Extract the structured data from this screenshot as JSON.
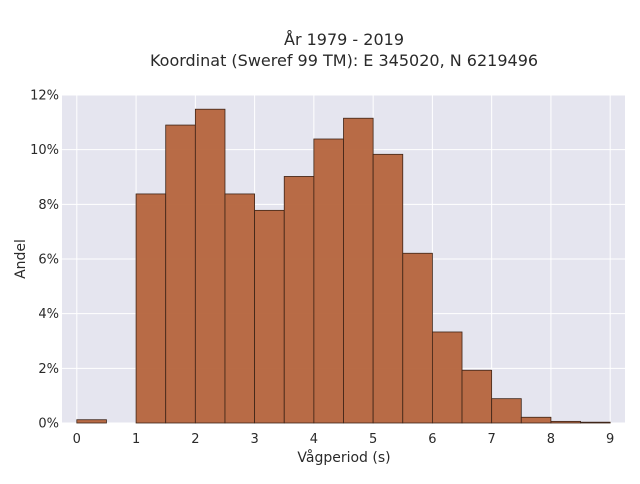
{
  "chart_data": {
    "type": "bar",
    "title_lines": [
      "År 1979 - 2019",
      "Koordinat (Sweref 99 TM): E 345020, N 6219496"
    ],
    "xlabel": "Vågperiod (s)",
    "ylabel": "Andel",
    "bin_width": 0.5,
    "bins": [
      {
        "x0": 0.0,
        "value": 0.0012
      },
      {
        "x0": 0.5,
        "value": 0.0
      },
      {
        "x0": 1.0,
        "value": 0.0838
      },
      {
        "x0": 1.5,
        "value": 0.109
      },
      {
        "x0": 2.0,
        "value": 0.1148
      },
      {
        "x0": 2.5,
        "value": 0.0838
      },
      {
        "x0": 3.0,
        "value": 0.0778
      },
      {
        "x0": 3.5,
        "value": 0.0902
      },
      {
        "x0": 4.0,
        "value": 0.1039
      },
      {
        "x0": 4.5,
        "value": 0.1115
      },
      {
        "x0": 5.0,
        "value": 0.0983
      },
      {
        "x0": 5.5,
        "value": 0.0621
      },
      {
        "x0": 6.0,
        "value": 0.0333
      },
      {
        "x0": 6.5,
        "value": 0.0193
      },
      {
        "x0": 7.0,
        "value": 0.0089
      },
      {
        "x0": 7.5,
        "value": 0.0021
      },
      {
        "x0": 8.0,
        "value": 0.0006
      },
      {
        "x0": 8.5,
        "value": 0.0003
      }
    ],
    "xlim": [
      -0.25,
      9.25
    ],
    "ylim": [
      0,
      0.12
    ],
    "x_ticks": [
      0,
      1,
      2,
      3,
      4,
      5,
      6,
      7,
      8,
      9
    ],
    "x_tick_labels": [
      "0",
      "1",
      "2",
      "3",
      "4",
      "5",
      "6",
      "7",
      "8",
      "9"
    ],
    "y_ticks": [
      0,
      0.02,
      0.04,
      0.06,
      0.08,
      0.1,
      0.12
    ],
    "y_tick_labels": [
      "0%",
      "2%",
      "4%",
      "6%",
      "8%",
      "10%",
      "12%"
    ],
    "grid": true,
    "colors": {
      "bar_fill": "#b5643c",
      "bar_stroke": "#3d2417",
      "plot_bg": "#e5e5ef",
      "grid": "#ffffff"
    }
  }
}
